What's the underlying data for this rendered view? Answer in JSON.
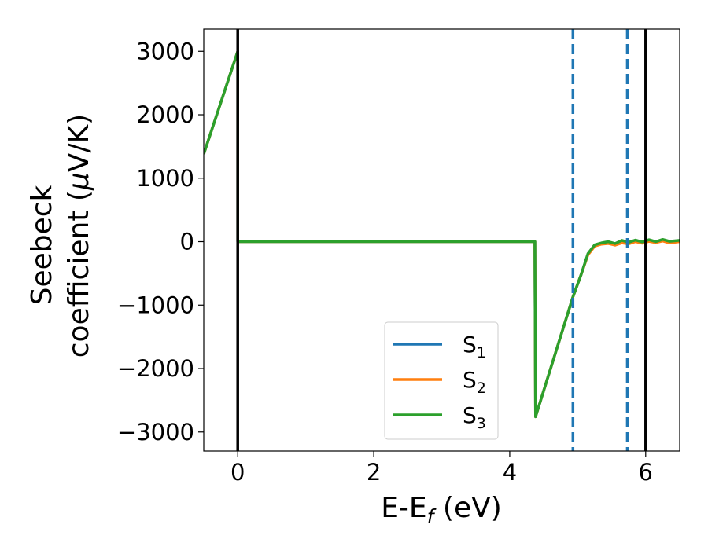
{
  "chart_data": {
    "type": "line",
    "xlabel": {
      "main": "E-E",
      "sub": "f",
      "unit": " (eV)"
    },
    "ylabel": {
      "line1": "Seebeck",
      "line2_prefix": "coefficient  (",
      "greek": "μ",
      "line2_suffix": "V/K)"
    },
    "xlim": [
      -0.5,
      6.5
    ],
    "ylim": [
      -3300,
      3350
    ],
    "xticks": [
      0,
      2,
      4,
      6
    ],
    "xtick_labels": [
      "0",
      "2",
      "4",
      "6"
    ],
    "yticks": [
      3000,
      2000,
      1000,
      0,
      -1000,
      -2000,
      -3000
    ],
    "ytick_labels": [
      "3000",
      "2000",
      "1000",
      "0",
      "−1000",
      "−2000",
      "−3000"
    ],
    "grid": false,
    "legend_position": "lower-center",
    "vlines": [
      {
        "x": 0.0,
        "style": "solid",
        "color": "#000000"
      },
      {
        "x": 6.0,
        "style": "solid",
        "color": "#000000"
      },
      {
        "x": 4.93,
        "style": "dashed",
        "color": "#1f77b4"
      },
      {
        "x": 5.73,
        "style": "dashed",
        "color": "#1f77b4"
      }
    ],
    "series": [
      {
        "name": "S",
        "sub": "1",
        "color": "#1f77b4",
        "x": [
          -0.5,
          0.0,
          0.0,
          4.37,
          4.38,
          4.93,
          5.05,
          5.15,
          5.25,
          5.35,
          5.45,
          5.55,
          5.65,
          5.75,
          5.85,
          5.95,
          6.05,
          6.15,
          6.25,
          6.35,
          6.5
        ],
        "y": [
          1380,
          3000,
          0,
          0,
          -2760,
          -870,
          -520,
          -200,
          -60,
          -25,
          -10,
          -40,
          -5,
          -20,
          10,
          -15,
          15,
          -5,
          20,
          -10,
          10
        ]
      },
      {
        "name": "S",
        "sub": "2",
        "color": "#ff7f0e",
        "x": [
          -0.5,
          0.0,
          0.0,
          4.37,
          4.38,
          4.93,
          5.05,
          5.15,
          5.25,
          5.35,
          5.45,
          5.55,
          5.65,
          5.75,
          5.85,
          5.95,
          6.05,
          6.15,
          6.25,
          6.35,
          6.5
        ],
        "y": [
          1380,
          3000,
          0,
          0,
          -2760,
          -870,
          -520,
          -210,
          -70,
          -40,
          -30,
          -55,
          -20,
          -35,
          0,
          -25,
          5,
          -15,
          10,
          -20,
          0
        ]
      },
      {
        "name": "S",
        "sub": "3",
        "color": "#2ca02c",
        "x": [
          -0.5,
          0.0,
          0.0,
          4.37,
          4.38,
          4.93,
          5.05,
          5.15,
          5.25,
          5.35,
          5.45,
          5.55,
          5.65,
          5.75,
          5.85,
          5.95,
          6.05,
          6.15,
          6.25,
          6.35,
          6.5
        ],
        "y": [
          1380,
          3000,
          0,
          0,
          -2760,
          -870,
          -520,
          -190,
          -50,
          -20,
          0,
          -30,
          20,
          -10,
          25,
          -5,
          30,
          0,
          35,
          5,
          20
        ]
      }
    ]
  }
}
